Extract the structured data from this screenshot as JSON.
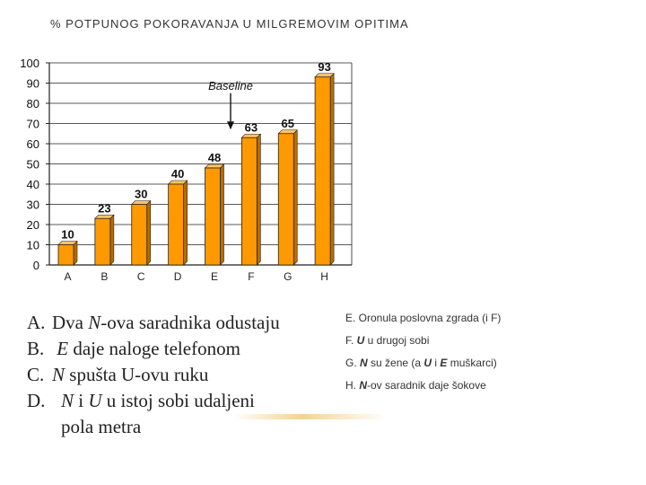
{
  "slide_title": "% POTPUNOG POKORAVANJA U MILGREMOVIM OPITIMA",
  "chart_data": {
    "type": "bar",
    "categories": [
      "A",
      "B",
      "C",
      "D",
      "E",
      "F",
      "G",
      "H"
    ],
    "values": [
      10,
      23,
      30,
      40,
      48,
      63,
      65,
      93
    ],
    "ylim": [
      0,
      100
    ],
    "yticks": [
      0,
      10,
      20,
      30,
      40,
      50,
      60,
      70,
      80,
      90,
      100
    ],
    "annotation": "Baseline",
    "grid": true,
    "bar_color": "#ff9900"
  },
  "left_list": [
    {
      "label": "A.",
      "parts": [
        "Dva ",
        "N",
        "-ova saradnika odustaju"
      ]
    },
    {
      "label": "B.",
      "parts": [
        "",
        "E",
        " daje naloge telefonom"
      ]
    },
    {
      "label": "C.",
      "parts": [
        "",
        "N",
        " spušta U-ovu ruku"
      ]
    },
    {
      "label": "D.",
      "parts": [
        "",
        "N",
        " i ",
        "U",
        " u istoj sobi udaljeni"
      ]
    },
    {
      "label": "",
      "parts": [
        "pola metra"
      ]
    }
  ],
  "right_list": [
    {
      "parts": [
        "E. Oronula poslovna zgrada (i F)"
      ]
    },
    {
      "parts": [
        "F.  ",
        "U",
        " u drugoj sobi"
      ]
    },
    {
      "parts": [
        "G. ",
        "N",
        " su žene (a ",
        "U",
        " i ",
        "E",
        " muškarci)"
      ]
    },
    {
      "parts": [
        "H. ",
        "N",
        "-ov saradnik daje šokove"
      ]
    }
  ]
}
